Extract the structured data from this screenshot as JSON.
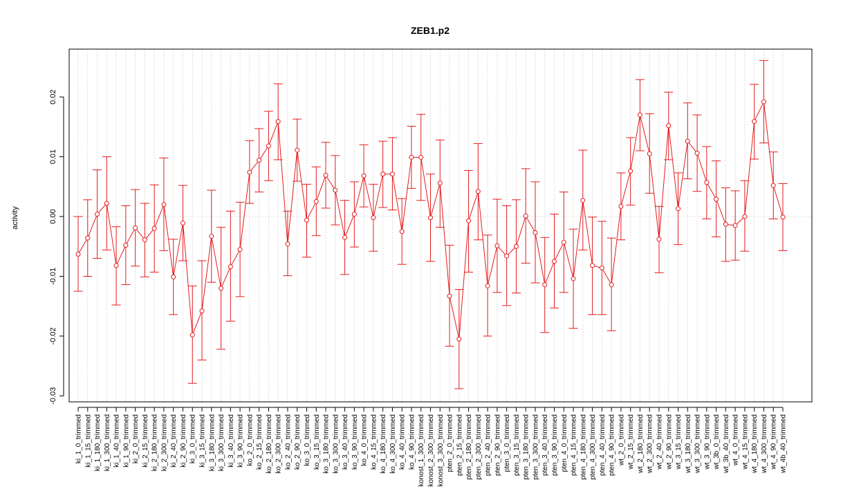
{
  "chart_data": {
    "type": "line",
    "title": "ZEB1.p2",
    "xlabel": "",
    "ylabel": "activity",
    "ylim": [
      -0.031,
      0.028
    ],
    "yticks": [
      -0.03,
      -0.02,
      -0.01,
      0.0,
      0.01,
      0.02
    ],
    "ytick_labels": [
      "-0.03",
      "-0.02",
      "-0.01",
      "0.00",
      "0.01",
      "0.02"
    ],
    "grid": true,
    "color": "#e41a1c",
    "categories": [
      "ki_1_0_trimmed",
      "ki_1_15_trimmed",
      "ki_1_180_trimmed",
      "ki_1_300_trimmed",
      "ki_1_40_trimmed",
      "ki_1_90_trimmed",
      "ki_2_0_trimmed",
      "ki_2_15_trimmed",
      "ki_2_180_trimmed",
      "ki_2_300_trimmed",
      "ki_2_40_trimmed",
      "ki_2_90_trimmed",
      "ki_3_0_trimmed",
      "ki_3_15_trimmed",
      "ki_3_180_trimmed",
      "ki_3_300_trimmed",
      "ki_3_40_trimmed",
      "ki_3_90_trimmed",
      "ko_2_0_trimmed",
      "ko_2_15_trimmed",
      "ko_2_180_trimmed",
      "ko_2_300_trimmed",
      "ko_2_40_trimmed",
      "ko_2_90_trimmed",
      "ko_3_0_trimmed",
      "ko_3_15_trimmed",
      "ko_3_180_trimmed",
      "ko_3_300_trimmed",
      "ko_3_40_trimmed",
      "ko_3_90_trimmed",
      "ko_4_0_trimmed",
      "ko_4_15_trimmed",
      "ko_4_180_trimmed",
      "ko_4_300_trimmed",
      "ko_4_40_trimmed",
      "ko_4_90_trimmed",
      "konost_1_300_trimmed",
      "konost_2_300_trimmed",
      "konost_3_300_trimmed",
      "pten_2_0_trimmed",
      "pten_2_15_trimmed",
      "pten_2_180_trimmed",
      "pten_2_300_trimmed",
      "pten_2_40_trimmed",
      "pten_2_90_trimmed",
      "pten_3_0_trimmed",
      "pten_3_15_trimmed",
      "pten_3_180_trimmed",
      "pten_3_300_trimmed",
      "pten_3_40_trimmed",
      "pten_3_90_trimmed",
      "pten_4_0_trimmed",
      "pten_4_15_trimmed",
      "pten_4_180_trimmed",
      "pten_4_300_trimmed",
      "pten_4_40_trimmed",
      "pten_4_90_trimmed",
      "wt_2_0_trimmed",
      "wt_2_15_trimmed",
      "wt_2_180_trimmed",
      "wt_2_300_trimmed",
      "wt_2_40_trimmed",
      "wt_2_90_trimmed",
      "wt_3_15_trimmed",
      "wt_3_180_trimmed",
      "wt_3_300_trimmed",
      "wt_3_90_trimmed",
      "wt_3b_0_trimmed",
      "wt_3b_40_trimmed",
      "wt_4_0_trimmed",
      "wt_4_15_trimmed",
      "wt_4_180_trimmed",
      "wt_4_300_trimmed",
      "wt_4_90_trimmed",
      "wt_4b_40_trimmed"
    ],
    "values": [
      -0.0063,
      -0.0036,
      0.0004,
      0.0022,
      -0.0082,
      -0.0048,
      -0.0019,
      -0.0039,
      -0.002,
      0.002,
      -0.0101,
      -0.0011,
      -0.0198,
      -0.0158,
      -0.0033,
      -0.012,
      -0.0084,
      -0.0055,
      0.0074,
      0.0094,
      0.0118,
      0.0159,
      -0.0046,
      0.0111,
      -0.0006,
      0.0025,
      0.0069,
      0.0044,
      -0.0035,
      0.0004,
      0.0068,
      -0.0002,
      0.0071,
      0.0071,
      -0.0025,
      0.0099,
      0.0099,
      -0.0002,
      0.0056,
      -0.0133,
      -0.0205,
      -0.0007,
      0.0042,
      -0.0116,
      -0.0049,
      -0.0066,
      -0.005,
      0.0001,
      -0.0027,
      -0.0114,
      -0.0075,
      -0.0043,
      -0.0104,
      0.0027,
      -0.0082,
      -0.0086,
      -0.0114,
      0.0017,
      0.0076,
      0.017,
      0.0105,
      -0.0038,
      0.0152,
      0.0013,
      0.0126,
      0.0106,
      0.0057,
      0.0029,
      -0.0013,
      -0.0015,
      0.0,
      0.0159,
      0.0192,
      0.0052,
      -0.0001
    ],
    "upper": [
      0.0,
      0.0028,
      0.0078,
      0.01,
      -0.0017,
      0.0018,
      0.0045,
      0.0022,
      0.0053,
      0.0098,
      -0.0038,
      0.0052,
      -0.0116,
      -0.0074,
      0.0044,
      -0.0018,
      0.0009,
      0.0024,
      0.0127,
      0.0147,
      0.0176,
      0.0222,
      0.0009,
      0.0163,
      0.0054,
      0.0083,
      0.0124,
      0.0102,
      0.0027,
      0.0058,
      0.012,
      0.0054,
      0.0126,
      0.0132,
      0.003,
      0.0151,
      0.0171,
      0.0071,
      0.0128,
      -0.0048,
      -0.0122,
      0.0077,
      0.0122,
      -0.0031,
      0.0029,
      0.0018,
      0.0028,
      0.008,
      0.0058,
      -0.0035,
      0.0004,
      0.0041,
      -0.0021,
      0.0111,
      -0.0001,
      -0.0008,
      -0.0036,
      0.0073,
      0.0132,
      0.0229,
      0.0172,
      0.0017,
      0.0208,
      0.0073,
      0.019,
      0.017,
      0.0117,
      0.0093,
      0.0048,
      0.0043,
      0.006,
      0.0221,
      0.0261,
      0.0108,
      0.0055
    ],
    "lower": [
      -0.0125,
      -0.01,
      -0.007,
      -0.0056,
      -0.0148,
      -0.0114,
      -0.0083,
      -0.0101,
      -0.0093,
      -0.0057,
      -0.0164,
      -0.0074,
      -0.0279,
      -0.024,
      -0.011,
      -0.0222,
      -0.0175,
      -0.0134,
      0.0022,
      0.0041,
      0.006,
      0.0095,
      -0.0099,
      0.0059,
      -0.0068,
      -0.0032,
      0.0014,
      -0.0014,
      -0.0097,
      -0.0051,
      0.0016,
      -0.0058,
      0.0015,
      0.0011,
      -0.008,
      0.0047,
      0.0027,
      -0.0075,
      -0.0018,
      -0.0217,
      -0.0288,
      -0.0093,
      -0.0039,
      -0.02,
      -0.0127,
      -0.0149,
      -0.0128,
      -0.0078,
      -0.0111,
      -0.0194,
      -0.0153,
      -0.0127,
      -0.0187,
      -0.0056,
      -0.0164,
      -0.0164,
      -0.0191,
      -0.0039,
      0.0019,
      0.011,
      0.0039,
      -0.0094,
      0.0095,
      -0.0047,
      0.0063,
      0.0042,
      -0.0004,
      -0.0034,
      -0.0075,
      -0.0073,
      -0.0058,
      0.0096,
      0.0123,
      -0.0004,
      -0.0057
    ]
  }
}
